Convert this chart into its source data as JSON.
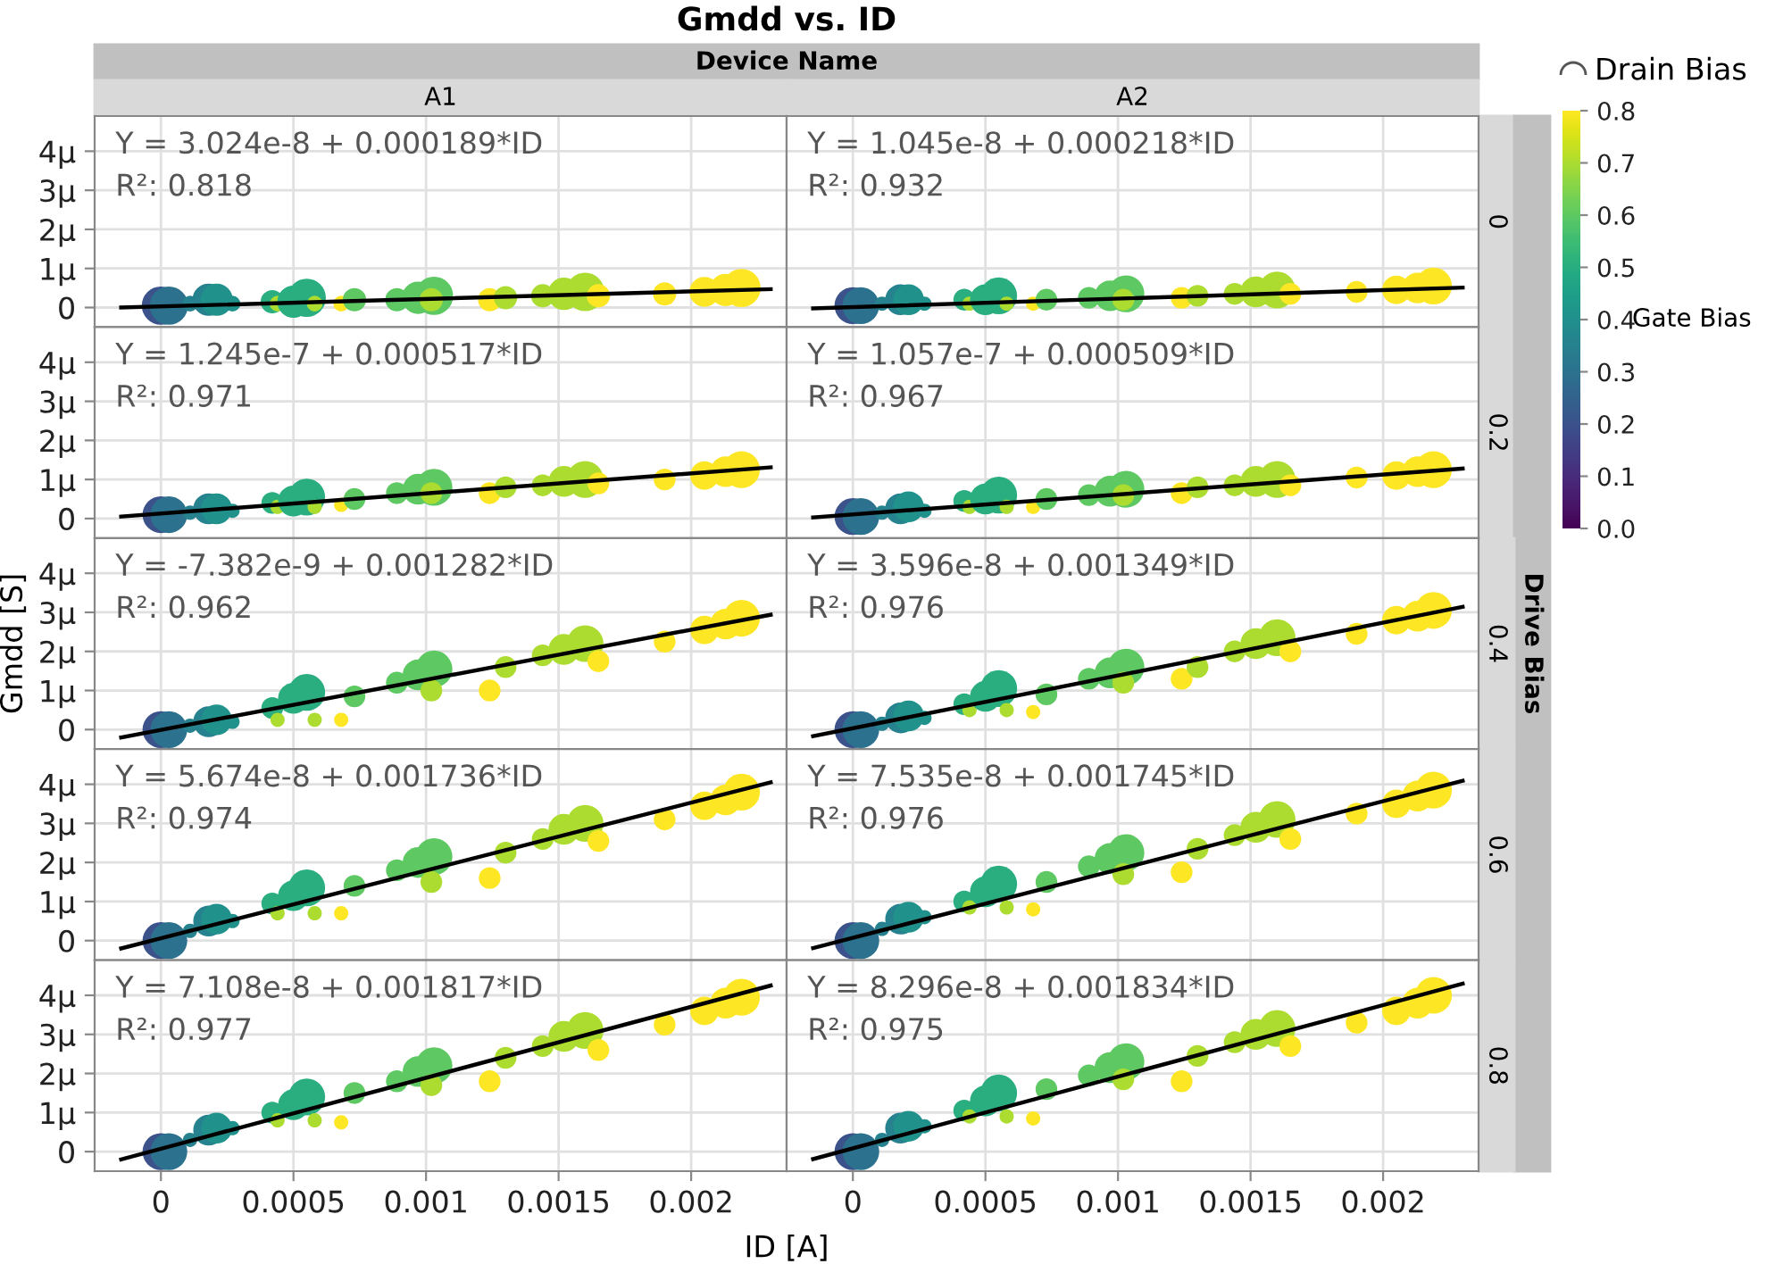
{
  "chart_data": [
    {
      "type": "bubble",
      "title": "Gmdd vs. ID",
      "subtitle": "A1",
      "clabel": "Gate Bias",
      "clim": [
        0,
        0.8
      ],
      "cticks": [
        {
          "value": 0,
          "label": "0.0"
        },
        0.1,
        0.2,
        0.3,
        0.4,
        0.5,
        0.6,
        0.7,
        0.8
      ],
      "legend_title": "Drain Bias",
      "annotations": [
        "Y = 3.024e-8 + 0.000189*ID",
        "R²: 0.818",
        "Device Name"
      ],
      "xlim": [
        -0.00025,
        0.00236
      ],
      "ylim": [
        -0.5,
        4.9
      ],
      "xticks": [
        0,
        0.0005,
        0.001,
        0.0015,
        0.002
      ],
      "yticks": [
        0,
        {
          "value": 1,
          "label": "1μ"
        },
        {
          "value": 2,
          "label": "2μ"
        },
        {
          "value": 3,
          "label": "3μ"
        },
        {
          "value": 4,
          "label": "4μ"
        }
      ],
      "grid": true,
      "tick_labels": "y",
      "series": [
        {
          "x": [
            0,
            3e-05,
            0.00011,
            0.00018,
            0.00021,
            0.00027,
            0.00042,
            0.00044,
            0.0005,
            0.00055,
            0.00058,
            0.00068,
            0.00073,
            0.00089,
            0.00097,
            0.00103,
            0.00102,
            0.00124,
            0.0013,
            0.00144,
            0.00152,
            0.0016,
            0.00165,
            0.0019,
            0.00205,
            0.00213,
            0.00219
          ],
          "values": [
            0.05,
            0.05,
            0.1,
            0.2,
            0.2,
            0.1,
            0.15,
            0.1,
            0.15,
            0.25,
            0.1,
            0.1,
            0.2,
            0.2,
            0.25,
            0.3,
            0.2,
            0.2,
            0.25,
            0.3,
            0.35,
            0.4,
            0.3,
            0.35,
            0.4,
            0.45,
            0.5
          ],
          "sizes": [
            1,
            1,
            0.15,
            0.7,
            0.7,
            0.15,
            0.35,
            0.15,
            0.7,
            1,
            0.15,
            0.15,
            0.35,
            0.35,
            0.7,
            1,
            0.35,
            0.35,
            0.35,
            0.35,
            0.7,
            1,
            0.35,
            0.35,
            0.6,
            0.7,
            1
          ],
          "cvalues": [
            0.2,
            0.3,
            0.35,
            0.35,
            0.4,
            0.4,
            0.5,
            0.7,
            0.5,
            0.5,
            0.7,
            0.8,
            0.6,
            0.6,
            0.6,
            0.6,
            0.7,
            0.8,
            0.7,
            0.7,
            0.7,
            0.7,
            0.8,
            0.8,
            0.8,
            0.8,
            0.8
          ],
          "colors": [
            "#3b528b",
            "#2c728e",
            "#26828e",
            "#26828e",
            "#21918c",
            "#21918c",
            "#2aae80",
            "#addc30",
            "#2aae80",
            "#2aae80",
            "#addc30",
            "#fde725",
            "#5ec962",
            "#5ec962",
            "#5ec962",
            "#5ec962",
            "#addc30",
            "#fde725",
            "#addc30",
            "#addc30",
            "#addc30",
            "#addc30",
            "#fde725",
            "#fde725",
            "#fde725",
            "#fde725",
            "#fde725"
          ]
        },
        {
          "type": "line",
          "color": "#000000",
          "x": [
            -0.00015,
            0.0023
          ],
          "values": [
            0.0,
            0.47
          ]
        }
      ]
    },
    {
      "type": "bubble",
      "subtitle": "A2",
      "y2label": "0",
      "annotations": [
        "Y = 1.045e-8 + 0.000218*ID",
        "R²: 0.932"
      ],
      "xlim": [
        -0.00025,
        0.00236
      ],
      "ylim": [
        -0.5,
        4.9
      ],
      "xticks": [
        0,
        0.0005,
        0.001,
        0.0015,
        0.002
      ],
      "yticks": [
        {
          "value": 0,
          "label": null
        },
        {
          "value": 1,
          "label": null
        },
        {
          "value": 2,
          "label": null
        },
        {
          "value": 3,
          "label": null
        },
        {
          "value": 4,
          "label": null
        }
      ],
      "grid": true,
      "tick_labels": false,
      "series": [
        {
          "x": [
            0,
            3e-05,
            0.00011,
            0.00018,
            0.00021,
            0.00027,
            0.00042,
            0.00044,
            0.0005,
            0.00055,
            0.00058,
            0.00068,
            0.00073,
            0.00089,
            0.00097,
            0.00103,
            0.00102,
            0.00124,
            0.0013,
            0.00144,
            0.00152,
            0.0016,
            0.00165,
            0.0019,
            0.00205,
            0.00213,
            0.00219
          ],
          "values": [
            0.05,
            0.05,
            0.1,
            0.2,
            0.2,
            0.1,
            0.2,
            0.1,
            0.2,
            0.3,
            0.1,
            0.1,
            0.2,
            0.25,
            0.3,
            0.35,
            0.2,
            0.25,
            0.3,
            0.35,
            0.4,
            0.45,
            0.35,
            0.4,
            0.45,
            0.5,
            0.55
          ],
          "sizes": [
            1,
            1,
            0.15,
            0.7,
            0.7,
            0.15,
            0.35,
            0.15,
            0.7,
            1,
            0.15,
            0.15,
            0.35,
            0.35,
            0.7,
            1,
            0.35,
            0.35,
            0.35,
            0.35,
            0.7,
            1,
            0.35,
            0.35,
            0.6,
            0.7,
            1
          ],
          "colors": [
            "#3b528b",
            "#2c728e",
            "#26828e",
            "#26828e",
            "#21918c",
            "#21918c",
            "#2aae80",
            "#addc30",
            "#2aae80",
            "#2aae80",
            "#addc30",
            "#fde725",
            "#5ec962",
            "#5ec962",
            "#5ec962",
            "#5ec962",
            "#addc30",
            "#fde725",
            "#addc30",
            "#addc30",
            "#addc30",
            "#addc30",
            "#fde725",
            "#fde725",
            "#fde725",
            "#fde725",
            "#fde725"
          ]
        },
        {
          "type": "line",
          "color": "#000000",
          "x": [
            -0.00015,
            0.0023
          ],
          "values": [
            -0.02,
            0.51
          ]
        }
      ]
    },
    {
      "type": "bubble",
      "annotations": [
        "Y = 1.245e-7 + 0.000517*ID",
        "R²: 0.971"
      ],
      "xlim": [
        -0.00025,
        0.00236
      ],
      "ylim": [
        -0.5,
        4.9
      ],
      "xticks": [
        0,
        0.0005,
        0.001,
        0.0015,
        0.002
      ],
      "yticks": [
        0,
        {
          "value": 1,
          "label": "1μ"
        },
        {
          "value": 2,
          "label": "2μ"
        },
        {
          "value": 3,
          "label": "3μ"
        },
        {
          "value": 4,
          "label": "4μ"
        }
      ],
      "grid": true,
      "tick_labels": "y",
      "series": [
        {
          "x": [
            0,
            3e-05,
            0.00011,
            0.00018,
            0.00021,
            0.00027,
            0.00042,
            0.00044,
            0.0005,
            0.00055,
            0.00058,
            0.00068,
            0.00073,
            0.00089,
            0.00097,
            0.00103,
            0.00102,
            0.00124,
            0.0013,
            0.00144,
            0.00152,
            0.0016,
            0.00165,
            0.0019,
            0.00205,
            0.00213,
            0.00219
          ],
          "values": [
            0.1,
            0.1,
            0.15,
            0.25,
            0.25,
            0.2,
            0.4,
            0.3,
            0.45,
            0.55,
            0.3,
            0.35,
            0.5,
            0.65,
            0.75,
            0.8,
            0.65,
            0.65,
            0.8,
            0.85,
            0.95,
            1.0,
            0.9,
            1.0,
            1.1,
            1.2,
            1.25
          ],
          "sizes": [
            1,
            1,
            0.15,
            0.7,
            0.7,
            0.15,
            0.35,
            0.15,
            0.7,
            1,
            0.15,
            0.15,
            0.35,
            0.35,
            0.7,
            1,
            0.35,
            0.35,
            0.35,
            0.35,
            0.7,
            1,
            0.35,
            0.35,
            0.6,
            0.7,
            1
          ],
          "colors": [
            "#3b528b",
            "#2c728e",
            "#26828e",
            "#26828e",
            "#21918c",
            "#21918c",
            "#2aae80",
            "#addc30",
            "#2aae80",
            "#2aae80",
            "#addc30",
            "#fde725",
            "#5ec962",
            "#5ec962",
            "#5ec962",
            "#5ec962",
            "#addc30",
            "#fde725",
            "#addc30",
            "#addc30",
            "#addc30",
            "#addc30",
            "#fde725",
            "#fde725",
            "#fde725",
            "#fde725",
            "#fde725"
          ]
        },
        {
          "type": "line",
          "color": "#000000",
          "x": [
            -0.00015,
            0.0023
          ],
          "values": [
            0.05,
            1.31
          ]
        }
      ]
    },
    {
      "type": "bubble",
      "y2label": "0.2",
      "annotations": [
        "Y = 1.057e-7 + 0.000509*ID",
        "R²: 0.967"
      ],
      "xlim": [
        -0.00025,
        0.00236
      ],
      "ylim": [
        -0.5,
        4.9
      ],
      "xticks": [
        0,
        0.0005,
        0.001,
        0.0015,
        0.002
      ],
      "yticks": [
        {
          "value": 0,
          "label": null
        },
        {
          "value": 1,
          "label": null
        },
        {
          "value": 2,
          "label": null
        },
        {
          "value": 3,
          "label": null
        },
        {
          "value": 4,
          "label": null
        }
      ],
      "grid": true,
      "tick_labels": false,
      "series": [
        {
          "x": [
            0,
            3e-05,
            0.00011,
            0.00018,
            0.00021,
            0.00027,
            0.00042,
            0.00044,
            0.0005,
            0.00055,
            0.00058,
            0.00068,
            0.00073,
            0.00089,
            0.00097,
            0.00103,
            0.00102,
            0.00124,
            0.0013,
            0.00144,
            0.00152,
            0.0016,
            0.00165,
            0.0019,
            0.00205,
            0.00213,
            0.00219
          ],
          "values": [
            0.05,
            0.05,
            0.15,
            0.25,
            0.3,
            0.2,
            0.45,
            0.3,
            0.5,
            0.6,
            0.3,
            0.3,
            0.5,
            0.6,
            0.7,
            0.75,
            0.6,
            0.65,
            0.8,
            0.85,
            0.95,
            1.0,
            0.85,
            1.05,
            1.1,
            1.2,
            1.25
          ],
          "sizes": [
            1,
            1,
            0.15,
            0.7,
            0.7,
            0.15,
            0.35,
            0.15,
            0.7,
            1,
            0.15,
            0.15,
            0.35,
            0.35,
            0.7,
            1,
            0.35,
            0.35,
            0.35,
            0.35,
            0.7,
            1,
            0.35,
            0.35,
            0.6,
            0.7,
            1
          ],
          "colors": [
            "#3b528b",
            "#2c728e",
            "#26828e",
            "#26828e",
            "#21918c",
            "#21918c",
            "#2aae80",
            "#addc30",
            "#2aae80",
            "#2aae80",
            "#addc30",
            "#fde725",
            "#5ec962",
            "#5ec962",
            "#5ec962",
            "#5ec962",
            "#addc30",
            "#fde725",
            "#addc30",
            "#addc30",
            "#addc30",
            "#addc30",
            "#fde725",
            "#fde725",
            "#fde725",
            "#fde725",
            "#fde725"
          ]
        },
        {
          "type": "line",
          "color": "#000000",
          "x": [
            -0.00015,
            0.0023
          ],
          "values": [
            0.03,
            1.28
          ]
        }
      ]
    },
    {
      "type": "bubble",
      "ylabel": "Gmdd [S]",
      "annotations": [
        "Y = -7.382e-9 + 0.001282*ID",
        "R²: 0.962"
      ],
      "xlim": [
        -0.00025,
        0.00236
      ],
      "ylim": [
        -0.5,
        4.9
      ],
      "xticks": [
        0,
        0.0005,
        0.001,
        0.0015,
        0.002
      ],
      "yticks": [
        0,
        {
          "value": 1,
          "label": "1μ"
        },
        {
          "value": 2,
          "label": "2μ"
        },
        {
          "value": 3,
          "label": "3μ"
        },
        {
          "value": 4,
          "label": "4μ"
        }
      ],
      "grid": true,
      "tick_labels": "y",
      "series": [
        {
          "x": [
            0,
            3e-05,
            0.00011,
            0.00018,
            0.00021,
            0.00027,
            0.00042,
            0.00044,
            0.0005,
            0.00055,
            0.00058,
            0.00068,
            0.00073,
            0.00089,
            0.00097,
            0.00103,
            0.00102,
            0.00124,
            0.0013,
            0.00144,
            0.00152,
            0.0016,
            0.00165,
            0.0019,
            0.00205,
            0.00213,
            0.00219
          ],
          "values": [
            0,
            0,
            0.1,
            0.2,
            0.25,
            0.2,
            0.55,
            0.25,
            0.8,
            0.95,
            0.25,
            0.25,
            0.85,
            1.2,
            1.4,
            1.55,
            1.0,
            1.0,
            1.6,
            1.9,
            2.05,
            2.2,
            1.75,
            2.25,
            2.55,
            2.7,
            2.85
          ],
          "sizes": [
            1,
            1,
            0.15,
            0.7,
            0.7,
            0.15,
            0.35,
            0.15,
            0.7,
            1,
            0.15,
            0.15,
            0.35,
            0.35,
            0.7,
            1,
            0.35,
            0.35,
            0.35,
            0.35,
            0.7,
            1,
            0.35,
            0.35,
            0.6,
            0.7,
            1
          ],
          "colors": [
            "#3b528b",
            "#2c728e",
            "#26828e",
            "#26828e",
            "#21918c",
            "#21918c",
            "#2aae80",
            "#addc30",
            "#2aae80",
            "#2aae80",
            "#addc30",
            "#fde725",
            "#5ec962",
            "#5ec962",
            "#5ec962",
            "#5ec962",
            "#addc30",
            "#fde725",
            "#addc30",
            "#addc30",
            "#addc30",
            "#addc30",
            "#fde725",
            "#fde725",
            "#fde725",
            "#fde725",
            "#fde725"
          ]
        },
        {
          "type": "line",
          "color": "#000000",
          "x": [
            -0.00015,
            0.0023
          ],
          "values": [
            -0.2,
            2.94
          ]
        }
      ]
    },
    {
      "type": "bubble",
      "y2label": "0.4",
      "annotations": [
        "Y = 3.596e-8 + 0.001349*ID",
        "R²: 0.976",
        "Drive Bias"
      ],
      "xlim": [
        -0.00025,
        0.00236
      ],
      "ylim": [
        -0.5,
        4.9
      ],
      "xticks": [
        0,
        0.0005,
        0.001,
        0.0015,
        0.002
      ],
      "yticks": [
        {
          "value": 0,
          "label": null
        },
        {
          "value": 1,
          "label": null
        },
        {
          "value": 2,
          "label": null
        },
        {
          "value": 3,
          "label": null
        },
        {
          "value": 4,
          "label": null
        }
      ],
      "grid": true,
      "tick_labels": false,
      "series": [
        {
          "x": [
            0,
            3e-05,
            0.00011,
            0.00018,
            0.00021,
            0.00027,
            0.00042,
            0.00044,
            0.0005,
            0.00055,
            0.00058,
            0.00068,
            0.00073,
            0.00089,
            0.00097,
            0.00103,
            0.00102,
            0.00124,
            0.0013,
            0.00144,
            0.00152,
            0.0016,
            0.00165,
            0.0019,
            0.00205,
            0.00213,
            0.00219
          ],
          "values": [
            0,
            0,
            0.15,
            0.3,
            0.35,
            0.3,
            0.65,
            0.5,
            0.85,
            1.05,
            0.5,
            0.45,
            0.9,
            1.3,
            1.45,
            1.6,
            1.2,
            1.3,
            1.6,
            2.0,
            2.2,
            2.35,
            2.0,
            2.45,
            2.8,
            2.9,
            3.05
          ],
          "sizes": [
            1,
            1,
            0.15,
            0.7,
            0.7,
            0.15,
            0.35,
            0.15,
            0.7,
            1,
            0.15,
            0.15,
            0.35,
            0.35,
            0.7,
            1,
            0.35,
            0.35,
            0.35,
            0.35,
            0.7,
            1,
            0.35,
            0.35,
            0.6,
            0.7,
            1
          ],
          "colors": [
            "#3b528b",
            "#2c728e",
            "#26828e",
            "#26828e",
            "#21918c",
            "#21918c",
            "#2aae80",
            "#addc30",
            "#2aae80",
            "#2aae80",
            "#addc30",
            "#fde725",
            "#5ec962",
            "#5ec962",
            "#5ec962",
            "#5ec962",
            "#addc30",
            "#fde725",
            "#addc30",
            "#addc30",
            "#addc30",
            "#addc30",
            "#fde725",
            "#fde725",
            "#fde725",
            "#fde725",
            "#fde725"
          ]
        },
        {
          "type": "line",
          "color": "#000000",
          "x": [
            -0.00015,
            0.0023
          ],
          "values": [
            -0.17,
            3.14
          ]
        }
      ]
    },
    {
      "type": "bubble",
      "annotations": [
        "Y = 5.674e-8 + 0.001736*ID",
        "R²: 0.974"
      ],
      "xlim": [
        -0.00025,
        0.00236
      ],
      "ylim": [
        -0.5,
        4.9
      ],
      "xticks": [
        0,
        0.0005,
        0.001,
        0.0015,
        0.002
      ],
      "yticks": [
        0,
        {
          "value": 1,
          "label": "1μ"
        },
        {
          "value": 2,
          "label": "2μ"
        },
        {
          "value": 3,
          "label": "3μ"
        },
        {
          "value": 4,
          "label": "4μ"
        }
      ],
      "grid": true,
      "tick_labels": "y",
      "series": [
        {
          "x": [
            0,
            3e-05,
            0.00011,
            0.00018,
            0.00021,
            0.00027,
            0.00042,
            0.00044,
            0.0005,
            0.00055,
            0.00058,
            0.00068,
            0.00073,
            0.00089,
            0.00097,
            0.00103,
            0.00102,
            0.00124,
            0.0013,
            0.00144,
            0.00152,
            0.0016,
            0.00165,
            0.0019,
            0.00205,
            0.00213,
            0.00219
          ],
          "values": [
            0,
            0,
            0.25,
            0.5,
            0.55,
            0.5,
            0.95,
            0.7,
            1.15,
            1.35,
            0.7,
            0.7,
            1.4,
            1.8,
            2.0,
            2.15,
            1.5,
            1.6,
            2.25,
            2.6,
            2.85,
            3.0,
            2.55,
            3.1,
            3.45,
            3.6,
            3.8
          ],
          "sizes": [
            1,
            1,
            0.15,
            0.7,
            0.7,
            0.15,
            0.35,
            0.15,
            0.7,
            1,
            0.15,
            0.15,
            0.35,
            0.35,
            0.7,
            1,
            0.35,
            0.35,
            0.35,
            0.35,
            0.7,
            1,
            0.35,
            0.35,
            0.6,
            0.7,
            1
          ],
          "colors": [
            "#3b528b",
            "#2c728e",
            "#26828e",
            "#26828e",
            "#21918c",
            "#21918c",
            "#2aae80",
            "#addc30",
            "#2aae80",
            "#2aae80",
            "#addc30",
            "#fde725",
            "#5ec962",
            "#5ec962",
            "#5ec962",
            "#5ec962",
            "#addc30",
            "#fde725",
            "#addc30",
            "#addc30",
            "#addc30",
            "#addc30",
            "#fde725",
            "#fde725",
            "#fde725",
            "#fde725",
            "#fde725"
          ]
        },
        {
          "type": "line",
          "color": "#000000",
          "x": [
            -0.00015,
            0.0023
          ],
          "values": [
            -0.2,
            4.05
          ]
        }
      ]
    },
    {
      "type": "bubble",
      "y2label": "0.6",
      "annotations": [
        "Y = 7.535e-8 + 0.001745*ID",
        "R²: 0.976"
      ],
      "xlim": [
        -0.00025,
        0.00236
      ],
      "ylim": [
        -0.5,
        4.9
      ],
      "xticks": [
        0,
        0.0005,
        0.001,
        0.0015,
        0.002
      ],
      "yticks": [
        {
          "value": 0,
          "label": null
        },
        {
          "value": 1,
          "label": null
        },
        {
          "value": 2,
          "label": null
        },
        {
          "value": 3,
          "label": null
        },
        {
          "value": 4,
          "label": null
        }
      ],
      "grid": true,
      "tick_labels": false,
      "series": [
        {
          "x": [
            0,
            3e-05,
            0.00011,
            0.00018,
            0.00021,
            0.00027,
            0.00042,
            0.00044,
            0.0005,
            0.00055,
            0.00058,
            0.00068,
            0.00073,
            0.00089,
            0.00097,
            0.00103,
            0.00102,
            0.00124,
            0.0013,
            0.00144,
            0.00152,
            0.0016,
            0.00165,
            0.0019,
            0.00205,
            0.00213,
            0.00219
          ],
          "values": [
            0,
            0,
            0.3,
            0.55,
            0.6,
            0.6,
            1.0,
            0.85,
            1.25,
            1.45,
            0.85,
            0.8,
            1.5,
            1.9,
            2.1,
            2.25,
            1.7,
            1.75,
            2.35,
            2.7,
            2.9,
            3.1,
            2.6,
            3.25,
            3.5,
            3.7,
            3.85
          ],
          "sizes": [
            1,
            1,
            0.15,
            0.7,
            0.7,
            0.15,
            0.35,
            0.15,
            0.7,
            1,
            0.15,
            0.15,
            0.35,
            0.35,
            0.7,
            1,
            0.35,
            0.35,
            0.35,
            0.35,
            0.7,
            1,
            0.35,
            0.35,
            0.6,
            0.7,
            1
          ],
          "colors": [
            "#3b528b",
            "#2c728e",
            "#26828e",
            "#26828e",
            "#21918c",
            "#21918c",
            "#2aae80",
            "#addc30",
            "#2aae80",
            "#2aae80",
            "#addc30",
            "#fde725",
            "#5ec962",
            "#5ec962",
            "#5ec962",
            "#5ec962",
            "#addc30",
            "#fde725",
            "#addc30",
            "#addc30",
            "#addc30",
            "#addc30",
            "#fde725",
            "#fde725",
            "#fde725",
            "#fde725",
            "#fde725"
          ]
        },
        {
          "type": "line",
          "color": "#000000",
          "x": [
            -0.00015,
            0.0023
          ],
          "values": [
            -0.19,
            4.09
          ]
        }
      ]
    },
    {
      "type": "bubble",
      "xlabel": "ID [A]",
      "annotations": [
        "Y = 7.108e-8 + 0.001817*ID",
        "R²: 0.977"
      ],
      "xlim": [
        -0.00025,
        0.00236
      ],
      "ylim": [
        -0.5,
        4.9
      ],
      "xticks": [
        0,
        0.0005,
        0.001,
        0.0015,
        0.002
      ],
      "yticks": [
        0,
        {
          "value": 1,
          "label": "1μ"
        },
        {
          "value": 2,
          "label": "2μ"
        },
        {
          "value": 3,
          "label": "3μ"
        },
        {
          "value": 4,
          "label": "4μ"
        }
      ],
      "grid": true,
      "series": [
        {
          "x": [
            0,
            3e-05,
            0.00011,
            0.00018,
            0.00021,
            0.00027,
            0.00042,
            0.00044,
            0.0005,
            0.00055,
            0.00058,
            0.00068,
            0.00073,
            0.00089,
            0.00097,
            0.00103,
            0.00102,
            0.00124,
            0.0013,
            0.00144,
            0.00152,
            0.0016,
            0.00165,
            0.0019,
            0.00205,
            0.00213,
            0.00219
          ],
          "values": [
            0,
            0,
            0.3,
            0.55,
            0.6,
            0.6,
            1.0,
            0.8,
            1.2,
            1.4,
            0.8,
            0.75,
            1.5,
            1.8,
            2.05,
            2.2,
            1.7,
            1.8,
            2.4,
            2.7,
            2.95,
            3.1,
            2.6,
            3.25,
            3.6,
            3.8,
            3.95
          ],
          "sizes": [
            1,
            1,
            0.15,
            0.7,
            0.7,
            0.15,
            0.35,
            0.15,
            0.7,
            1,
            0.15,
            0.15,
            0.35,
            0.35,
            0.7,
            1,
            0.35,
            0.35,
            0.35,
            0.35,
            0.7,
            1,
            0.35,
            0.35,
            0.6,
            0.7,
            1
          ],
          "colors": [
            "#3b528b",
            "#2c728e",
            "#26828e",
            "#26828e",
            "#21918c",
            "#21918c",
            "#2aae80",
            "#addc30",
            "#2aae80",
            "#2aae80",
            "#addc30",
            "#fde725",
            "#5ec962",
            "#5ec962",
            "#5ec962",
            "#5ec962",
            "#addc30",
            "#fde725",
            "#addc30",
            "#addc30",
            "#addc30",
            "#addc30",
            "#fde725",
            "#fde725",
            "#fde725",
            "#fde725",
            "#fde725"
          ]
        },
        {
          "type": "line",
          "color": "#000000",
          "x": [
            -0.00015,
            0.0023
          ],
          "values": [
            -0.2,
            4.25
          ]
        }
      ]
    },
    {
      "type": "bubble",
      "y2label": "0.8",
      "annotations": [
        "Y = 8.296e-8 + 0.001834*ID",
        "R²: 0.975"
      ],
      "xlim": [
        -0.00025,
        0.00236
      ],
      "ylim": [
        -0.5,
        4.9
      ],
      "xticks": [
        0,
        0.0005,
        0.001,
        0.0015,
        0.002
      ],
      "yticks": [
        {
          "value": 0,
          "label": null
        },
        {
          "value": 1,
          "label": null
        },
        {
          "value": 2,
          "label": null
        },
        {
          "value": 3,
          "label": null
        },
        {
          "value": 4,
          "label": null
        }
      ],
      "grid": true,
      "tick_labels": "x",
      "series": [
        {
          "x": [
            0,
            3e-05,
            0.00011,
            0.00018,
            0.00021,
            0.00027,
            0.00042,
            0.00044,
            0.0005,
            0.00055,
            0.00058,
            0.00068,
            0.00073,
            0.00089,
            0.00097,
            0.00103,
            0.00102,
            0.00124,
            0.0013,
            0.00144,
            0.00152,
            0.0016,
            0.00165,
            0.0019,
            0.00205,
            0.00213,
            0.00219
          ],
          "values": [
            0,
            0,
            0.3,
            0.6,
            0.65,
            0.65,
            1.05,
            0.9,
            1.3,
            1.5,
            0.9,
            0.85,
            1.6,
            1.95,
            2.15,
            2.3,
            1.85,
            1.8,
            2.45,
            2.8,
            3.0,
            3.15,
            2.7,
            3.3,
            3.6,
            3.8,
            4.0
          ],
          "sizes": [
            1,
            1,
            0.15,
            0.7,
            0.7,
            0.15,
            0.35,
            0.15,
            0.7,
            1,
            0.15,
            0.15,
            0.35,
            0.35,
            0.7,
            1,
            0.35,
            0.35,
            0.35,
            0.35,
            0.7,
            1,
            0.35,
            0.35,
            0.6,
            0.7,
            1
          ],
          "colors": [
            "#3b528b",
            "#2c728e",
            "#26828e",
            "#26828e",
            "#21918c",
            "#21918c",
            "#2aae80",
            "#addc30",
            "#2aae80",
            "#2aae80",
            "#addc30",
            "#fde725",
            "#5ec962",
            "#5ec962",
            "#5ec962",
            "#5ec962",
            "#addc30",
            "#fde725",
            "#addc30",
            "#addc30",
            "#addc30",
            "#addc30",
            "#fde725",
            "#fde725",
            "#fde725",
            "#fde725",
            "#fde725"
          ]
        },
        {
          "type": "line",
          "color": "#000000",
          "x": [
            -0.00015,
            0.0023
          ],
          "values": [
            -0.19,
            4.3
          ]
        }
      ]
    }
  ]
}
